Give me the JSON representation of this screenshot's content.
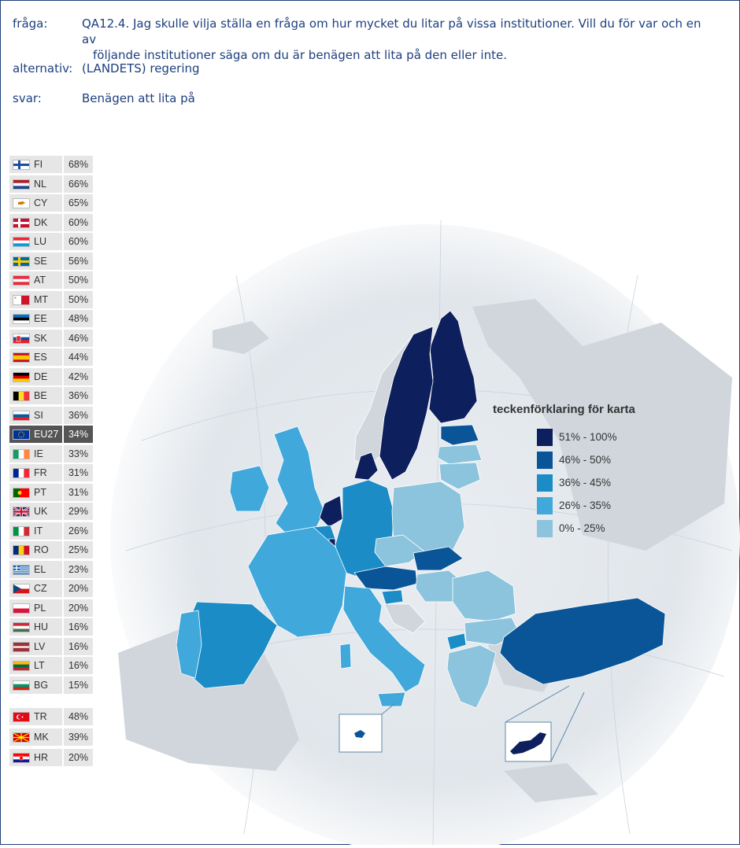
{
  "question": {
    "label": "fråga:",
    "text_line1": "QA12.4. Jag skulle vilja ställa en fråga om hur mycket du litar på vissa institutioner. Vill du för var och en av",
    "text_line2": "följande institutioner säga om du är benägen att lita på den eller inte."
  },
  "alternative": {
    "label": "alternativ:",
    "text": "(LANDETS) regering"
  },
  "answer": {
    "label": "svar:",
    "text": "Benägen att lita på"
  },
  "countries": [
    {
      "code": "FI",
      "value": "68%",
      "flag": "fi"
    },
    {
      "code": "NL",
      "value": "66%",
      "flag": "nl"
    },
    {
      "code": "CY",
      "value": "65%",
      "flag": "cy"
    },
    {
      "code": "DK",
      "value": "60%",
      "flag": "dk"
    },
    {
      "code": "LU",
      "value": "60%",
      "flag": "lu"
    },
    {
      "code": "SE",
      "value": "56%",
      "flag": "se"
    },
    {
      "code": "AT",
      "value": "50%",
      "flag": "at"
    },
    {
      "code": "MT",
      "value": "50%",
      "flag": "mt"
    },
    {
      "code": "EE",
      "value": "48%",
      "flag": "ee"
    },
    {
      "code": "SK",
      "value": "46%",
      "flag": "sk"
    },
    {
      "code": "ES",
      "value": "44%",
      "flag": "es"
    },
    {
      "code": "DE",
      "value": "42%",
      "flag": "de"
    },
    {
      "code": "BE",
      "value": "36%",
      "flag": "be"
    },
    {
      "code": "SI",
      "value": "36%",
      "flag": "si"
    },
    {
      "code": "EU27",
      "value": "34%",
      "flag": "eu"
    },
    {
      "code": "IE",
      "value": "33%",
      "flag": "ie"
    },
    {
      "code": "FR",
      "value": "31%",
      "flag": "fr"
    },
    {
      "code": "PT",
      "value": "31%",
      "flag": "pt"
    },
    {
      "code": "UK",
      "value": "29%",
      "flag": "uk"
    },
    {
      "code": "IT",
      "value": "26%",
      "flag": "it"
    },
    {
      "code": "RO",
      "value": "25%",
      "flag": "ro"
    },
    {
      "code": "EL",
      "value": "23%",
      "flag": "el"
    },
    {
      "code": "CZ",
      "value": "20%",
      "flag": "cz"
    },
    {
      "code": "PL",
      "value": "20%",
      "flag": "pl"
    },
    {
      "code": "HU",
      "value": "16%",
      "flag": "hu"
    },
    {
      "code": "LV",
      "value": "16%",
      "flag": "lv"
    },
    {
      "code": "LT",
      "value": "16%",
      "flag": "lt"
    },
    {
      "code": "BG",
      "value": "15%",
      "flag": "bg"
    }
  ],
  "candidates": [
    {
      "code": "TR",
      "value": "48%",
      "flag": "tr"
    },
    {
      "code": "MK",
      "value": "39%",
      "flag": "mk"
    },
    {
      "code": "HR",
      "value": "20%",
      "flag": "hr"
    }
  ],
  "legend": {
    "title": "teckenförklaring för karta",
    "items": [
      {
        "label": "51% - 100%",
        "color": "#0d1f5c"
      },
      {
        "label": "46% - 50%",
        "color": "#0a5597"
      },
      {
        "label": "36% - 45%",
        "color": "#1b8cc6"
      },
      {
        "label": "26% - 35%",
        "color": "#41a8db"
      },
      {
        "label": "0% - 25%",
        "color": "#8cc4dd"
      }
    ]
  },
  "colors": {
    "frame": "#1f3f7a",
    "text": "#1d3f7e",
    "cell_bg": "#e6e6e6",
    "eu_bg": "#555555"
  }
}
